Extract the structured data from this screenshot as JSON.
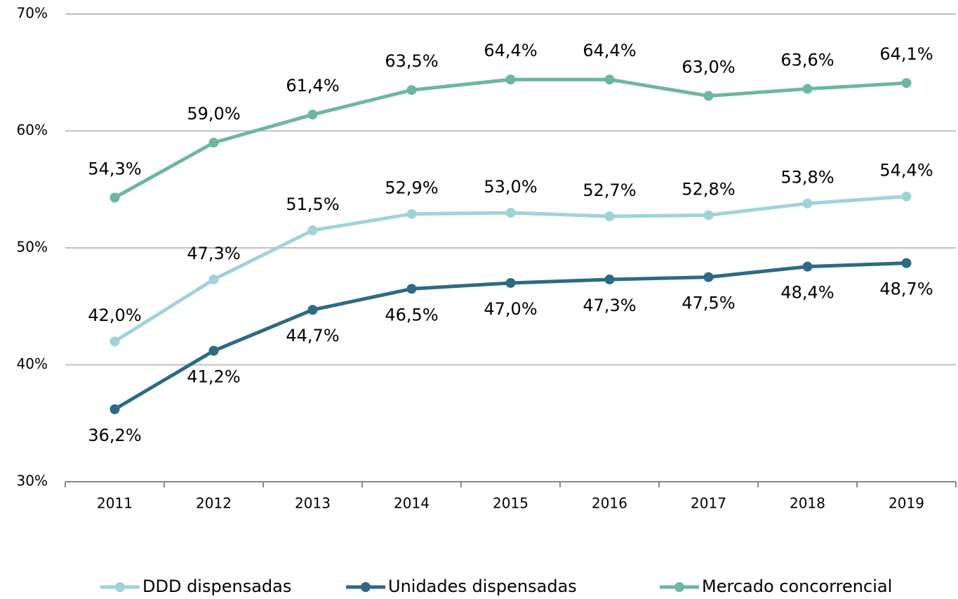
{
  "chart_data": {
    "type": "line",
    "categories": [
      "2011",
      "2012",
      "2013",
      "2014",
      "2015",
      "2016",
      "2017",
      "2018",
      "2019"
    ],
    "series": [
      {
        "name": "DDD dispensadas",
        "color": "#9fd3d9",
        "values": [
          42.0,
          47.3,
          51.5,
          52.9,
          53.0,
          52.7,
          52.8,
          53.8,
          54.4
        ],
        "value_labels": [
          "42,0%",
          "47,3%",
          "51,5%",
          "52,9%",
          "53,0%",
          "52,7%",
          "52,8%",
          "53,8%",
          "54,4%"
        ]
      },
      {
        "name": "Unidades dispensadas",
        "color": "#2d6a84",
        "values": [
          36.2,
          41.2,
          44.7,
          46.5,
          47.0,
          47.3,
          47.5,
          48.4,
          48.7
        ],
        "value_labels": [
          "36,2%",
          "41,2%",
          "44,7%",
          "46,5%",
          "47,0%",
          "47,3%",
          "47,5%",
          "48,4%",
          "48,7%"
        ]
      },
      {
        "name": "Mercado concorrencial",
        "color": "#6db79a",
        "values": [
          54.3,
          59.0,
          61.4,
          63.5,
          64.4,
          64.4,
          63.0,
          63.6,
          64.1
        ],
        "value_labels": [
          "54,3%",
          "59,0%",
          "61,4%",
          "63,5%",
          "64,4%",
          "64,4%",
          "63,0%",
          "63,6%",
          "64,1%"
        ]
      }
    ],
    "ylim": [
      30,
      70
    ],
    "yticks": [
      {
        "value": 30,
        "label": "30%"
      },
      {
        "value": 40,
        "label": "40%"
      },
      {
        "value": 50,
        "label": "50%"
      },
      {
        "value": 60,
        "label": "60%"
      },
      {
        "value": 70,
        "label": "70%"
      }
    ],
    "grid": true,
    "legend": "bottom"
  }
}
